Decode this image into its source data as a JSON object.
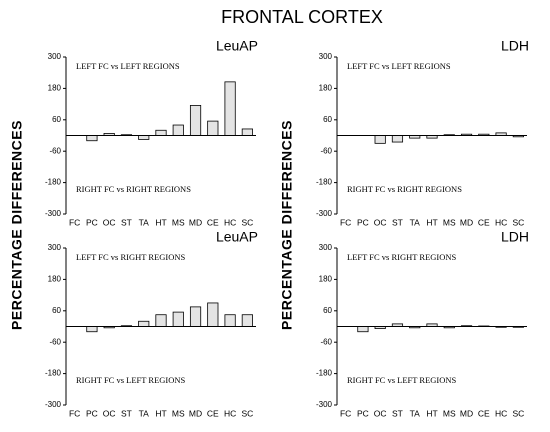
{
  "title": "FRONTAL CORTEX",
  "ylabel": "PERCENTAGE DIFFERENCES",
  "chart_data": [
    {
      "type": "bar",
      "title": "LeuAP",
      "annotation_top": "LEFT FC vs LEFT REGIONS",
      "annotation_bottom": "RIGHT FC vs RIGHT REGIONS",
      "categories": [
        "FC",
        "PC",
        "OC",
        "ST",
        "TA",
        "HT",
        "MS",
        "MD",
        "CE",
        "HC",
        "SC"
      ],
      "values": [
        0,
        -20,
        8,
        3,
        -15,
        20,
        40,
        115,
        55,
        205,
        25
      ],
      "color": "#e4e4e4",
      "ylim": [
        -300,
        300
      ],
      "yticks": [
        -300,
        -180,
        -60,
        60,
        180,
        300
      ]
    },
    {
      "type": "bar",
      "title": "LDH",
      "annotation_top": "LEFT FC vs LEFT REGIONS",
      "annotation_bottom": "RIGHT FC vs RIGHT REGIONS",
      "categories": [
        "FC",
        "PC",
        "OC",
        "ST",
        "TA",
        "HT",
        "MS",
        "MD",
        "CE",
        "HC",
        "SC"
      ],
      "values": [
        0,
        0,
        -30,
        -25,
        -10,
        -10,
        3,
        5,
        5,
        10,
        -5
      ],
      "color": "#e4e4e4",
      "ylim": [
        -300,
        300
      ],
      "yticks": [
        -300,
        -180,
        -60,
        60,
        180,
        300
      ]
    },
    {
      "type": "bar",
      "title": "LeuAP",
      "annotation_top": "LEFT FC vs RIGHT REGIONS",
      "annotation_bottom": "RIGHT FC vs LEFT REGIONS",
      "categories": [
        "FC",
        "PC",
        "OC",
        "ST",
        "TA",
        "HT",
        "MS",
        "MD",
        "CE",
        "HC",
        "SC"
      ],
      "values": [
        0,
        -20,
        -5,
        3,
        20,
        45,
        55,
        75,
        90,
        45,
        45
      ],
      "color": "#e4e4e4",
      "ylim": [
        -300,
        300
      ],
      "yticks": [
        -300,
        -180,
        -60,
        60,
        180,
        300
      ]
    },
    {
      "type": "bar",
      "title": "LDH",
      "annotation_top": "LEFT FC vs RIGHT REGIONS",
      "annotation_bottom": "RIGHT FC vs LEFT REGIONS",
      "categories": [
        "FC",
        "PC",
        "OC",
        "ST",
        "TA",
        "HT",
        "MS",
        "MD",
        "CE",
        "HC",
        "SC"
      ],
      "values": [
        0,
        -20,
        -8,
        10,
        -5,
        10,
        -5,
        3,
        2,
        -3,
        -3
      ],
      "color": "#e4e4e4",
      "ylim": [
        -300,
        300
      ],
      "yticks": [
        -300,
        -180,
        -60,
        60,
        180,
        300
      ]
    }
  ]
}
